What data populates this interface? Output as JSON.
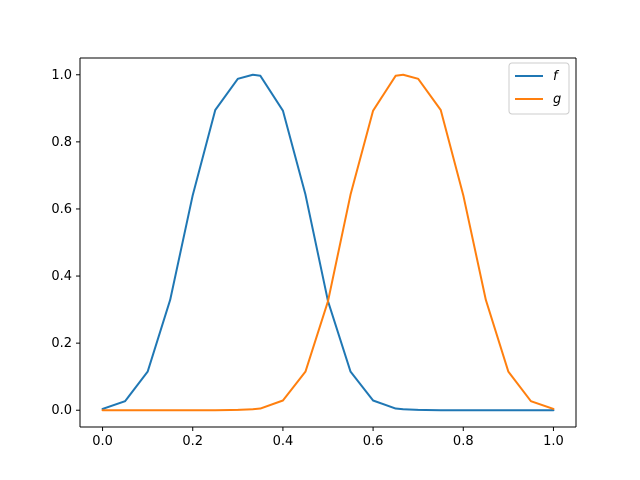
{
  "chart_data": {
    "type": "line",
    "title": "",
    "xlabel": "",
    "ylabel": "",
    "xlim": [
      -0.05,
      1.05
    ],
    "ylim": [
      -0.05,
      1.05
    ],
    "grid": false,
    "legend_position": "top-right",
    "x_ticks": [
      0.0,
      0.2,
      0.4,
      0.6,
      0.8,
      1.0
    ],
    "y_ticks": [
      0.0,
      0.2,
      0.4,
      0.6,
      0.8,
      1.0
    ],
    "x_tick_labels": [
      "0.0",
      "0.2",
      "0.4",
      "0.6",
      "0.8",
      "1.0"
    ],
    "y_tick_labels": [
      "0.0",
      "0.2",
      "0.4",
      "0.6",
      "0.8",
      "1.0"
    ],
    "x": [
      0.0,
      0.05,
      0.1,
      0.15,
      0.2,
      0.25,
      0.3,
      0.3333,
      0.35,
      0.4,
      0.45,
      0.5,
      0.55,
      0.6,
      0.65,
      0.6667,
      0.7,
      0.75,
      0.8,
      0.85,
      0.9,
      0.95,
      1.0
    ],
    "series": [
      {
        "name": "f",
        "color": "#1f77b4",
        "values": [
          0.004,
          0.027,
          0.115,
          0.329,
          0.641,
          0.895,
          0.988,
          1.0,
          0.997,
          0.893,
          0.643,
          0.325,
          0.115,
          0.029,
          0.005,
          0.003,
          0.001,
          0.0,
          0.0,
          0.0,
          0.0,
          0.0,
          0.0
        ]
      },
      {
        "name": "g",
        "color": "#ff7f0e",
        "values": [
          0.0,
          0.0,
          0.0,
          0.0,
          0.0,
          0.0,
          0.001,
          0.003,
          0.005,
          0.029,
          0.115,
          0.325,
          0.643,
          0.893,
          0.997,
          1.0,
          0.988,
          0.895,
          0.641,
          0.329,
          0.115,
          0.027,
          0.004
        ]
      }
    ],
    "legend": [
      {
        "label": "f",
        "color": "#1f77b4"
      },
      {
        "label": "g",
        "color": "#ff7f0e"
      }
    ]
  }
}
